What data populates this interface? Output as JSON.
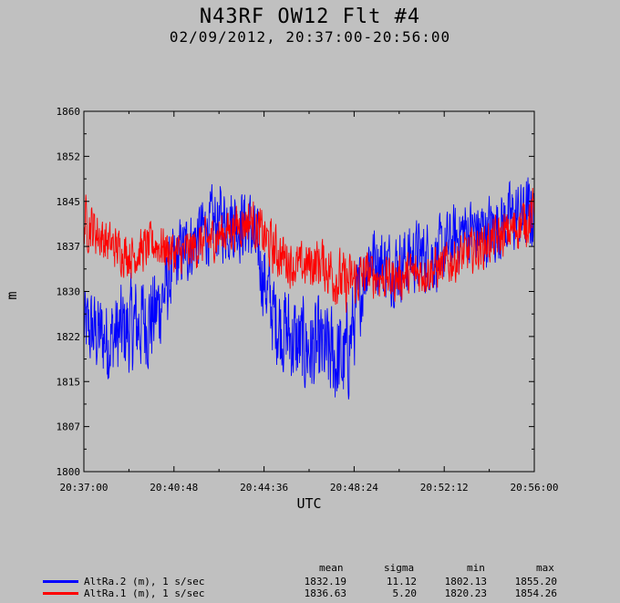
{
  "header": {
    "title": "N43RF OW12 Flt #4",
    "subtitle": "02/09/2012, 20:37:00-20:56:00"
  },
  "chart_data": {
    "type": "line",
    "title": "N43RF OW12 Flt #4",
    "subtitle": "02/09/2012, 20:37:00-20:56:00",
    "xlabel": "UTC",
    "ylabel": "m",
    "xlim": [
      "20:37:00",
      "20:56:00"
    ],
    "ylim": [
      1800,
      1860
    ],
    "x_ticks": [
      "20:37:00",
      "20:40:48",
      "20:44:36",
      "20:48:24",
      "20:52:12",
      "20:56:00"
    ],
    "y_ticks": [
      "1800",
      "1807",
      "1815",
      "1822",
      "1830",
      "1837",
      "1845",
      "1852",
      "1860"
    ],
    "x_sampling": "1 s/sec",
    "legend_stat_headers": [
      "mean",
      "sigma",
      "min",
      "max"
    ],
    "series": [
      {
        "name": "AltRa.2 (m), 1 s/sec",
        "color": "#0000ff",
        "mean": "1832.19",
        "sigma": "11.12",
        "min": "1802.13",
        "max": "1855.20",
        "envelope_x": [
          "20:37:00",
          "20:38:00",
          "20:39:00",
          "20:40:00",
          "20:41:00",
          "20:42:00",
          "20:43:00",
          "20:44:00",
          "20:45:00",
          "20:46:00",
          "20:47:00",
          "20:48:00",
          "20:49:00",
          "20:50:00",
          "20:51:00",
          "20:52:00",
          "20:53:00",
          "20:54:00",
          "20:55:00",
          "20:56:00"
        ],
        "envelope_center": [
          1824,
          1822,
          1824,
          1826,
          1836,
          1840,
          1842,
          1841,
          1826,
          1821,
          1820,
          1818,
          1836,
          1834,
          1836,
          1836,
          1840,
          1840,
          1842,
          1843
        ],
        "envelope_amp": [
          9,
          10,
          11,
          11,
          8,
          8,
          9,
          8,
          10,
          11,
          11,
          12,
          8,
          8,
          8,
          8,
          8,
          8,
          8,
          9
        ]
      },
      {
        "name": "AltRa.1 (m), 1 s/sec",
        "color": "#ff0000",
        "mean": "1836.63",
        "sigma": "5.20",
        "min": "1820.23",
        "max": "1854.26",
        "envelope_x": [
          "20:37:00",
          "20:38:00",
          "20:39:00",
          "20:40:00",
          "20:41:00",
          "20:42:00",
          "20:43:00",
          "20:44:00",
          "20:45:00",
          "20:46:00",
          "20:47:00",
          "20:48:00",
          "20:49:00",
          "20:50:00",
          "20:51:00",
          "20:52:00",
          "20:53:00",
          "20:54:00",
          "20:55:00",
          "20:56:00"
        ],
        "envelope_center": [
          1842,
          1838,
          1836,
          1838,
          1836,
          1838,
          1840,
          1842,
          1837,
          1834,
          1835,
          1831,
          1833,
          1832,
          1833,
          1834,
          1836,
          1838,
          1840,
          1843
        ],
        "envelope_amp": [
          6,
          5,
          5,
          5,
          5,
          5,
          5,
          5,
          6,
          5,
          6,
          7,
          5,
          5,
          5,
          5,
          5,
          5,
          5,
          6
        ]
      }
    ]
  }
}
